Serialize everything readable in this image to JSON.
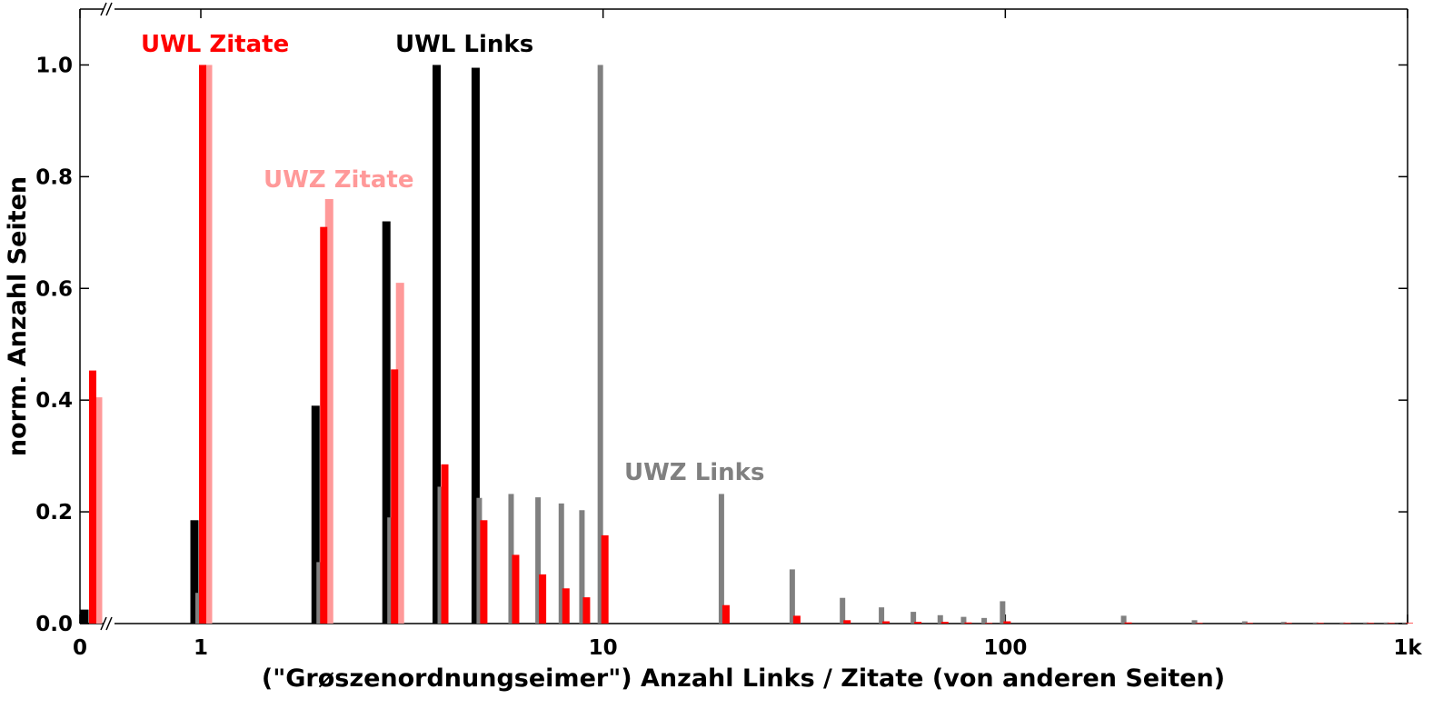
{
  "chart_data": {
    "type": "bar",
    "x_label": "(\"Grøszenordnungseimer\") Anzahl Links / Zitate (von anderen Seiten)",
    "y_label": "norm. Anzahl Seiten",
    "x": [
      0,
      1,
      2,
      3,
      4,
      5,
      6,
      7,
      8,
      9,
      10,
      20,
      30,
      40,
      50,
      60,
      70,
      80,
      90,
      100,
      200,
      300,
      400,
      500,
      600,
      700,
      800,
      900,
      1000
    ],
    "xscale": "log",
    "xlim": [
      0,
      1000
    ],
    "xticks": [
      0,
      1,
      10,
      100,
      {
        "value": 1000,
        "label": "1k"
      }
    ],
    "ylim": [
      0,
      1.1
    ],
    "yticks": [
      {
        "value": 0,
        "label": "0.0"
      },
      0.2,
      0.4,
      0.6,
      0.8,
      {
        "value": 1,
        "label": "1.0"
      }
    ],
    "series": [
      {
        "name": "UWL Links",
        "color": "#000000",
        "values": [
          0.025,
          0.185,
          0.39,
          0.72,
          1.0,
          0.995,
          0,
          0,
          0,
          0,
          0,
          0,
          0,
          0,
          0,
          0,
          0,
          0,
          0,
          0,
          0,
          0,
          0,
          0,
          0,
          0,
          0,
          0,
          0
        ]
      },
      {
        "name": "UWZ Links",
        "color": "#808080",
        "values": [
          0,
          0.055,
          0.11,
          0.19,
          0.245,
          0.225,
          0.232,
          0.226,
          0.215,
          0.203,
          1.0,
          0.232,
          0.097,
          0.046,
          0.029,
          0.021,
          0.015,
          0.012,
          0.01,
          0.04,
          0.014,
          0.006,
          0.004,
          0.003,
          0.002,
          0.002,
          0.002,
          0.002,
          0.002
        ]
      },
      {
        "name": "UWL Zitate",
        "color": "#ff0000",
        "values": [
          0.453,
          1.0,
          0.71,
          0.455,
          0.285,
          0.185,
          0.123,
          0.088,
          0.063,
          0.047,
          0.158,
          0.033,
          0.014,
          0.006,
          0.004,
          0.003,
          0.003,
          0.002,
          0.001,
          0.004,
          0.002,
          0.001,
          0.001,
          0.001,
          0.001,
          0.001,
          0.001,
          0.001,
          0.001
        ]
      },
      {
        "name": "UWZ Zitate",
        "color": "#ff9999",
        "values": [
          0.405,
          1.0,
          0.76,
          0.61,
          0,
          0,
          0,
          0,
          0,
          0,
          0,
          0,
          0,
          0,
          0,
          0,
          0,
          0,
          0,
          0,
          0,
          0,
          0,
          0,
          0,
          0,
          0,
          0,
          0
        ]
      }
    ]
  }
}
